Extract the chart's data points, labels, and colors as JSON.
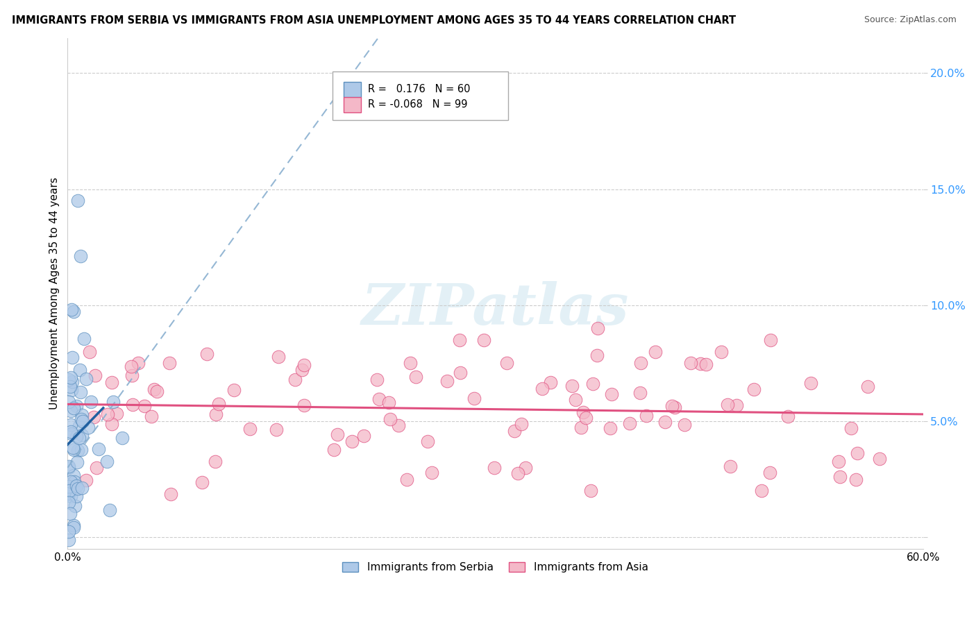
{
  "title": "IMMIGRANTS FROM SERBIA VS IMMIGRANTS FROM ASIA UNEMPLOYMENT AMONG AGES 35 TO 44 YEARS CORRELATION CHART",
  "source": "Source: ZipAtlas.com",
  "ylabel": "Unemployment Among Ages 35 to 44 years",
  "serbia_R": 0.176,
  "serbia_N": 60,
  "asia_R": -0.068,
  "asia_N": 99,
  "serbia_color": "#aec9e8",
  "asia_color": "#f4b8c8",
  "serbia_edge_color": "#5b8fbe",
  "asia_edge_color": "#e05080",
  "serbia_line_color": "#2060a0",
  "asia_line_color": "#e05080",
  "yticks": [
    0.0,
    0.05,
    0.1,
    0.15,
    0.2
  ],
  "ytick_labels": [
    "",
    "5.0%",
    "10.0%",
    "15.0%",
    "20.0%"
  ],
  "xlim": [
    0.0,
    0.6
  ],
  "ylim": [
    -0.005,
    0.215
  ],
  "watermark_text": "ZIPatlas",
  "legend_serbia": "Immigrants from Serbia",
  "legend_asia": "Immigrants from Asia"
}
